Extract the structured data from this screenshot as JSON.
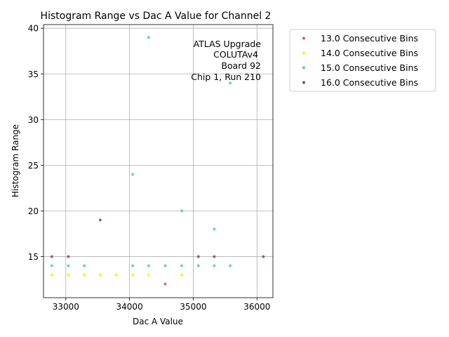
{
  "chart_data": {
    "type": "scatter",
    "title": "Histogram Range vs Dac A Value for Channel 2",
    "xlabel": "Dac A Value",
    "ylabel": "Histogram Range",
    "xlim": [
      32650,
      36250
    ],
    "ylim": [
      10.5,
      40.4
    ],
    "xticks": [
      33000,
      34000,
      35000,
      36000
    ],
    "yticks": [
      15,
      20,
      25,
      30,
      35,
      40
    ],
    "grid": true,
    "legend_position": "outside-top-right",
    "annotation": [
      "ATLAS Upgrade",
      "COLUTAv4",
      "Board 92",
      "Chip 1, Run 210"
    ],
    "series": [
      {
        "name": "13.0 Consecutive Bins",
        "color": "#e8505b",
        "points": [
          [
            34560,
            12
          ]
        ]
      },
      {
        "name": "14.0 Consecutive Bins",
        "color": "#f5f500",
        "points": [
          [
            32780,
            13
          ],
          [
            33040,
            13
          ],
          [
            33290,
            13
          ],
          [
            33540,
            13
          ],
          [
            33790,
            13
          ],
          [
            34050,
            13
          ],
          [
            34300,
            13
          ],
          [
            34820,
            13
          ]
        ]
      },
      {
        "name": "15.0 Consecutive Bins",
        "color": "#3fd6b0",
        "points": [
          [
            32780,
            14
          ],
          [
            33040,
            14
          ],
          [
            33290,
            14
          ],
          [
            34050,
            14
          ],
          [
            34300,
            14
          ],
          [
            34560,
            14
          ],
          [
            34820,
            14
          ],
          [
            35080,
            14
          ],
          [
            35330,
            14
          ],
          [
            35580,
            14
          ],
          [
            34050,
            24
          ],
          [
            34300,
            39
          ],
          [
            34820,
            20
          ],
          [
            35330,
            18
          ],
          [
            35580,
            34
          ]
        ]
      },
      {
        "name": "16.0 Consecutive Bins",
        "color": "#8b4a5c",
        "points": [
          [
            32780,
            15
          ],
          [
            33040,
            15
          ],
          [
            33540,
            19
          ],
          [
            35080,
            15
          ],
          [
            35330,
            15
          ],
          [
            36100,
            15
          ]
        ]
      }
    ]
  }
}
